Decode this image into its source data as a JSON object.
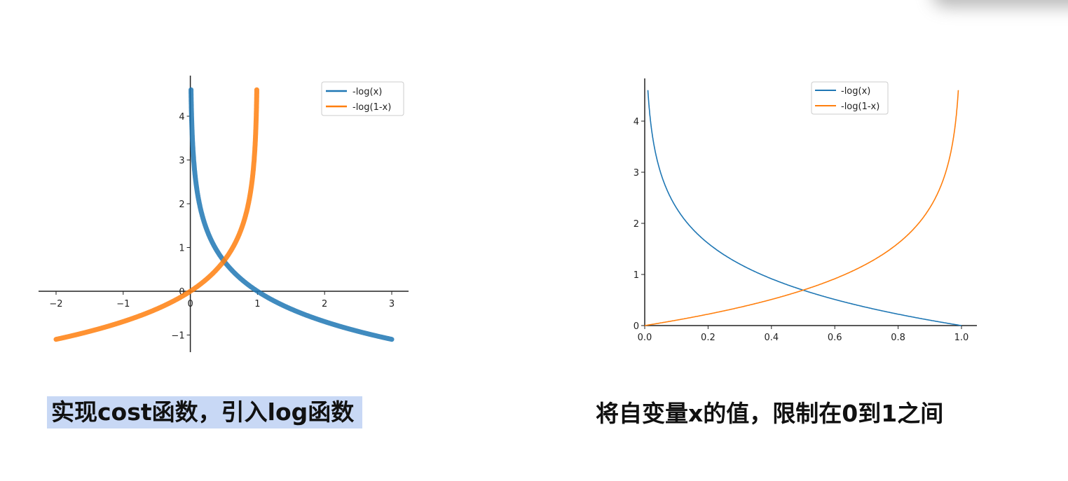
{
  "captions": {
    "left": "实现cost函数，引入log函数",
    "right": "将自变量x的值，限制在0到1之间"
  },
  "colors": {
    "blue": "#1f77b4",
    "orange": "#ff7f0e",
    "caption_highlight": "#c8d8f5"
  },
  "chart_data": [
    {
      "type": "line",
      "title": "",
      "xlabel": "",
      "ylabel": "",
      "xlim": [
        -2,
        3
      ],
      "ylim": [
        -1.4,
        4.8
      ],
      "xticks": [
        -2,
        -1,
        0,
        1,
        2,
        3
      ],
      "xtick_labels": [
        "−2",
        "−1",
        "0",
        "1",
        "2",
        "3"
      ],
      "yticks": [
        -1,
        0,
        1,
        2,
        3,
        4
      ],
      "ytick_labels": [
        "−1",
        "0",
        "1",
        "2",
        "3",
        "4"
      ],
      "spines": "centered",
      "legend": "top-right",
      "series": [
        {
          "name": "-log(x)",
          "color": "#1f77b4",
          "x": [
            0.01,
            0.02,
            0.05,
            0.1,
            0.2,
            0.3,
            0.5,
            0.7,
            1.0,
            1.5,
            2.0,
            2.5,
            3.0
          ],
          "y": [
            4.6,
            3.91,
            3.0,
            2.3,
            1.61,
            1.2,
            0.69,
            0.36,
            0.0,
            -0.41,
            -0.69,
            -0.92,
            -1.1
          ]
        },
        {
          "name": "-log(1-x)",
          "color": "#ff7f0e",
          "x": [
            -2.0,
            -1.5,
            -1.0,
            -0.5,
            -0.2,
            0.0,
            0.2,
            0.4,
            0.5,
            0.7,
            0.8,
            0.9,
            0.95,
            0.99
          ],
          "y": [
            -1.1,
            -0.92,
            -0.69,
            -0.41,
            -0.18,
            0.0,
            0.22,
            0.51,
            0.69,
            1.2,
            1.61,
            2.3,
            3.0,
            4.6
          ]
        }
      ]
    },
    {
      "type": "line",
      "title": "",
      "xlabel": "",
      "ylabel": "",
      "xlim": [
        0.0,
        1.0
      ],
      "ylim": [
        0,
        4.6
      ],
      "xticks": [
        0.0,
        0.2,
        0.4,
        0.6,
        0.8,
        1.0
      ],
      "xtick_labels": [
        "0.0",
        "0.2",
        "0.4",
        "0.6",
        "0.8",
        "1.0"
      ],
      "yticks": [
        0,
        1,
        2,
        3,
        4
      ],
      "ytick_labels": [
        "0",
        "1",
        "2",
        "3",
        "4"
      ],
      "legend": "top-right",
      "series": [
        {
          "name": "-log(x)",
          "color": "#1f77b4",
          "x": [
            0.01,
            0.02,
            0.05,
            0.1,
            0.2,
            0.3,
            0.4,
            0.5,
            0.6,
            0.7,
            0.8,
            0.9,
            1.0
          ],
          "y": [
            4.6,
            3.91,
            3.0,
            2.3,
            1.61,
            1.2,
            0.92,
            0.69,
            0.51,
            0.36,
            0.22,
            0.11,
            0.0
          ]
        },
        {
          "name": "-log(1-x)",
          "color": "#ff7f0e",
          "x": [
            0.0,
            0.1,
            0.2,
            0.3,
            0.4,
            0.5,
            0.6,
            0.7,
            0.8,
            0.9,
            0.95,
            0.98,
            0.99
          ],
          "y": [
            0.0,
            0.11,
            0.22,
            0.36,
            0.51,
            0.69,
            0.92,
            1.2,
            1.61,
            2.3,
            3.0,
            3.91,
            4.6
          ]
        }
      ]
    }
  ]
}
